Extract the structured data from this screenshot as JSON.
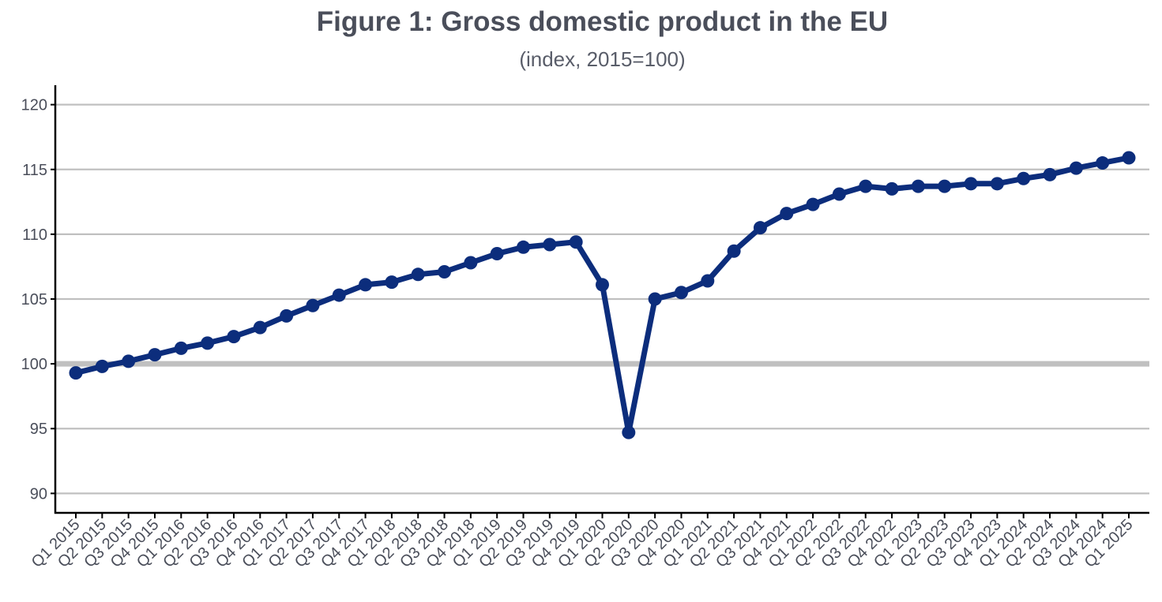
{
  "chart_data": {
    "type": "line",
    "title": "Figure 1: Gross domestic product in the EU",
    "subtitle": "(index, 2015=100)",
    "xlabel": "",
    "ylabel": "",
    "ylim": [
      88.5,
      121.5
    ],
    "yticks": [
      90,
      95,
      100,
      105,
      110,
      115,
      120
    ],
    "reference_line": 100,
    "grid": "horizontal",
    "legend": "none",
    "categories": [
      "Q1 2015",
      "Q2 2015",
      "Q3 2015",
      "Q4 2015",
      "Q1 2016",
      "Q2 2016",
      "Q3 2016",
      "Q4 2016",
      "Q1 2017",
      "Q2 2017",
      "Q3 2017",
      "Q4 2017",
      "Q1 2018",
      "Q2 2018",
      "Q3 2018",
      "Q4 2018",
      "Q1 2019",
      "Q2 2019",
      "Q3 2019",
      "Q4 2019",
      "Q1 2020",
      "Q2 2020",
      "Q3 2020",
      "Q4 2020",
      "Q1 2021",
      "Q2 2021",
      "Q3 2021",
      "Q4 2021",
      "Q1 2022",
      "Q2 2022",
      "Q3 2022",
      "Q4 2022",
      "Q1 2023",
      "Q2 2023",
      "Q3 2023",
      "Q4 2023",
      "Q1 2024",
      "Q2 2024",
      "Q3 2024",
      "Q4 2024",
      "Q1 2025"
    ],
    "series": [
      {
        "values": [
          99.3,
          99.8,
          100.2,
          100.7,
          101.2,
          101.6,
          102.1,
          102.8,
          103.7,
          104.5,
          105.3,
          106.1,
          106.3,
          106.9,
          107.1,
          107.8,
          108.5,
          109.0,
          109.2,
          109.4,
          106.1,
          94.7,
          105.0,
          105.5,
          106.4,
          108.7,
          110.5,
          111.6,
          112.3,
          113.1,
          113.7,
          113.5,
          113.7,
          113.7,
          113.9,
          113.9,
          114.3,
          114.6,
          115.1,
          115.5,
          115.9
        ]
      }
    ],
    "colors": {
      "line": "#0c2d7c",
      "grid": "#c0c0c0",
      "reference": "#c0c0c0",
      "axis": "#000000"
    }
  }
}
